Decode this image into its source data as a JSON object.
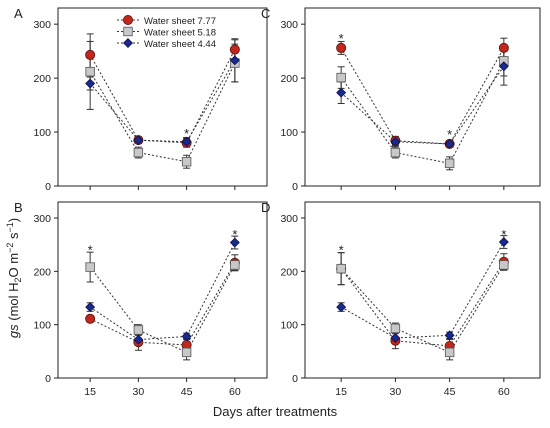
{
  "figure": {
    "ylabel_parts": [
      "gs",
      " (mol H",
      "2",
      "O m",
      "−2",
      " s",
      "−1",
      ")"
    ],
    "xlabel": "Days after treatments"
  },
  "colors": {
    "s777_fill": "#c0281e",
    "s518_fill": "#c8c8c8",
    "s444_fill": "#1a2a8c",
    "s777_edge": "#5a0f0a",
    "s518_edge": "#555555",
    "s444_edge": "#0a1050"
  },
  "legend_labels": [
    "Water sheet 7.77",
    "Water sheet 5.18",
    "Water sheet 4.44"
  ],
  "chart_data": [
    {
      "type": "line",
      "panel": "A",
      "x": [
        15,
        30,
        45,
        60
      ],
      "xlim": [
        5,
        70
      ],
      "ylim": [
        0,
        330
      ],
      "yticks": [
        0,
        100,
        200,
        300
      ],
      "legend": "top-left",
      "series": [
        {
          "name": "Water sheet 7.77",
          "values": [
            243,
            85,
            80,
            253
          ],
          "errors": [
            25,
            6,
            8,
            18
          ],
          "key": "s777",
          "marker": "circle"
        },
        {
          "name": "Water sheet 5.18",
          "values": [
            212,
            62,
            45,
            228
          ],
          "errors": [
            70,
            10,
            12,
            35
          ],
          "key": "s518",
          "marker": "square"
        },
        {
          "name": "Water sheet 4.44",
          "values": [
            190,
            85,
            82,
            233
          ],
          "errors": [
            12,
            6,
            8,
            40
          ],
          "key": "s444",
          "marker": "diamond"
        }
      ],
      "annotations": [
        {
          "x": 45,
          "y": 100,
          "text": "*"
        }
      ]
    },
    {
      "type": "line",
      "panel": "C",
      "x": [
        15,
        30,
        45,
        60
      ],
      "xlim": [
        5,
        70
      ],
      "ylim": [
        0,
        330
      ],
      "yticks": [
        0,
        100,
        200,
        300
      ],
      "series": [
        {
          "name": "Water sheet 7.77",
          "values": [
            256,
            84,
            78,
            256
          ],
          "errors": [
            12,
            8,
            6,
            18
          ],
          "key": "s777",
          "marker": "circle"
        },
        {
          "name": "Water sheet 5.18",
          "values": [
            201,
            62,
            42,
            232
          ],
          "errors": [
            20,
            10,
            12,
            28
          ],
          "key": "s518",
          "marker": "square"
        },
        {
          "name": "Water sheet 4.44",
          "values": [
            173,
            82,
            78,
            222
          ],
          "errors": [
            20,
            8,
            6,
            35
          ],
          "key": "s444",
          "marker": "diamond"
        }
      ],
      "annotations": [
        {
          "x": 15,
          "y": 276,
          "text": "*"
        },
        {
          "x": 45,
          "y": 98,
          "text": "*"
        }
      ]
    },
    {
      "type": "line",
      "panel": "B",
      "x": [
        15,
        30,
        45,
        60
      ],
      "xlim": [
        5,
        70
      ],
      "ylim": [
        0,
        330
      ],
      "yticks": [
        0,
        100,
        200,
        300
      ],
      "series": [
        {
          "name": "Water sheet 7.77",
          "values": [
            111,
            67,
            62,
            216
          ],
          "errors": [
            6,
            15,
            12,
            15
          ],
          "key": "s777",
          "marker": "circle"
        },
        {
          "name": "Water sheet 5.18",
          "values": [
            208,
            90,
            48,
            212
          ],
          "errors": [
            28,
            10,
            14,
            10
          ],
          "key": "s518",
          "marker": "square"
        },
        {
          "name": "Water sheet 4.44",
          "values": [
            133,
            72,
            78,
            254
          ],
          "errors": [
            8,
            10,
            6,
            12
          ],
          "key": "s444",
          "marker": "diamond"
        }
      ],
      "annotations": [
        {
          "x": 15,
          "y": 243,
          "text": "*"
        },
        {
          "x": 60,
          "y": 272,
          "text": "*"
        }
      ]
    },
    {
      "type": "line",
      "panel": "D",
      "x": [
        15,
        30,
        45,
        60
      ],
      "xlim": [
        5,
        70
      ],
      "ylim": [
        0,
        330
      ],
      "yticks": [
        0,
        100,
        200,
        300
      ],
      "series": [
        {
          "name": "Water sheet 7.77",
          "values": [
            205,
            70,
            60,
            218
          ],
          "errors": [
            30,
            15,
            12,
            15
          ],
          "key": "s777",
          "marker": "circle"
        },
        {
          "name": "Water sheet 5.18",
          "values": [
            205,
            93,
            48,
            212
          ],
          "errors": [
            30,
            10,
            14,
            10
          ],
          "key": "s518",
          "marker": "square"
        },
        {
          "name": "Water sheet 4.44",
          "values": [
            133,
            75,
            80,
            255
          ],
          "errors": [
            8,
            10,
            6,
            12
          ],
          "key": "s444",
          "marker": "diamond"
        }
      ],
      "annotations": [
        {
          "x": 15,
          "y": 243,
          "text": "*"
        },
        {
          "x": 60,
          "y": 272,
          "text": "*"
        }
      ]
    }
  ]
}
